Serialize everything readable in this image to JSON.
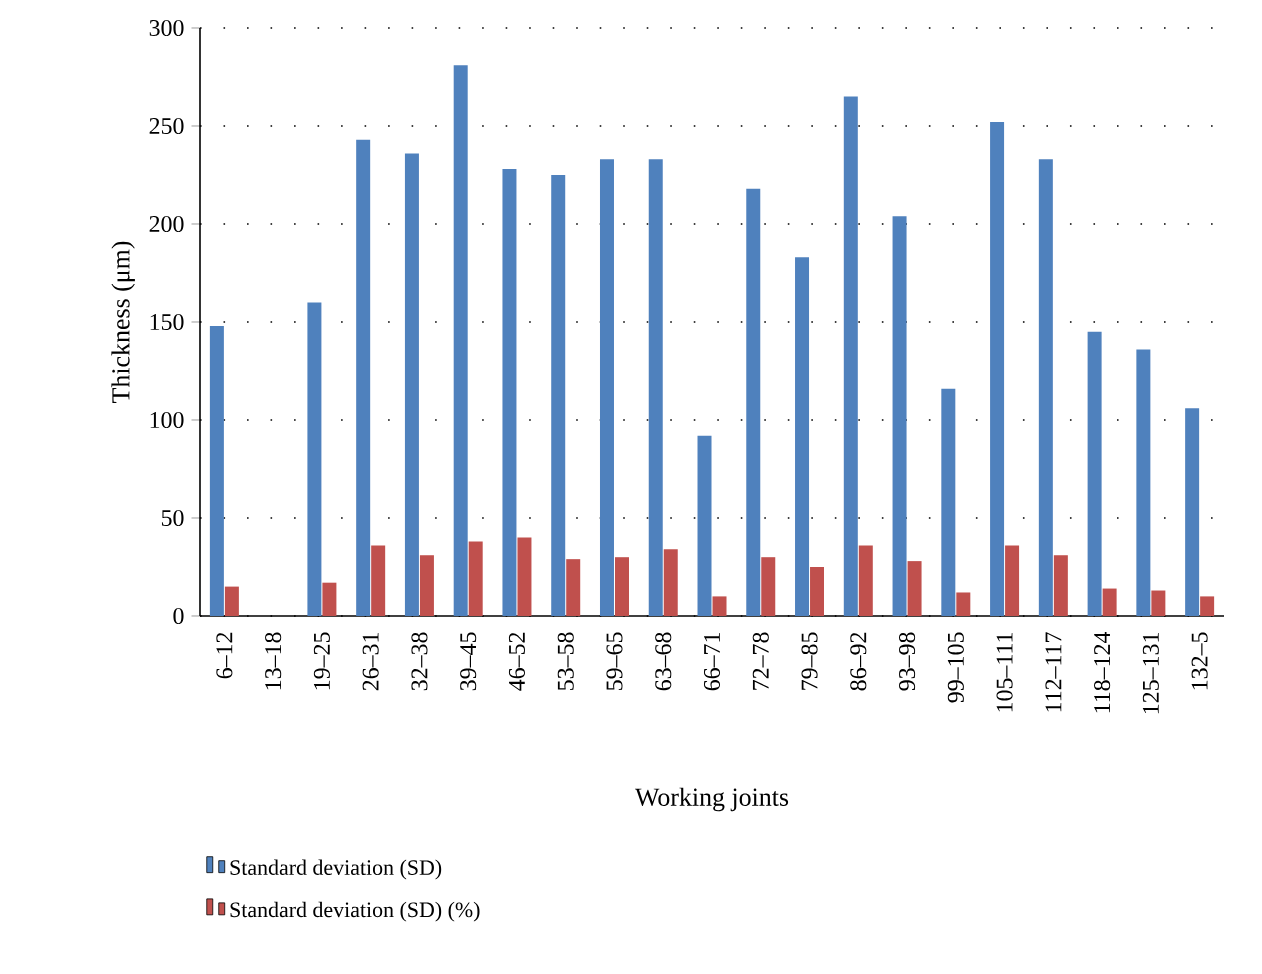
{
  "chart_data": {
    "type": "bar",
    "xlabel": "Working joints",
    "ylabel": "Thickness (μm)",
    "categories": [
      "6–12",
      "13–18",
      "19–25",
      "26–31",
      "32–38",
      "39–45",
      "46–52",
      "53–58",
      "59–65",
      "63–68",
      "66–71",
      "72–78",
      "79–85",
      "86–92",
      "93–98",
      "99–105",
      "105–111",
      "112–117",
      "118–124",
      "125–131",
      "132–5"
    ],
    "series": [
      {
        "name": "Standard deviation (SD)",
        "color": "#4f81bd",
        "values": [
          148,
          null,
          160,
          243,
          236,
          281,
          228,
          225,
          233,
          233,
          92,
          218,
          183,
          265,
          204,
          116,
          252,
          233,
          145,
          136,
          106
        ]
      },
      {
        "name": "Standard deviation (SD) (%)",
        "color": "#c0504d",
        "values": [
          15,
          null,
          17,
          36,
          31,
          38,
          40,
          29,
          30,
          34,
          10,
          30,
          25,
          36,
          28,
          12,
          36,
          31,
          14,
          13,
          10
        ]
      }
    ],
    "ylim": [
      0,
      300
    ],
    "yticks": [
      0,
      50,
      100,
      150,
      200,
      250,
      300
    ],
    "grid": "y",
    "legend": "bottom"
  }
}
